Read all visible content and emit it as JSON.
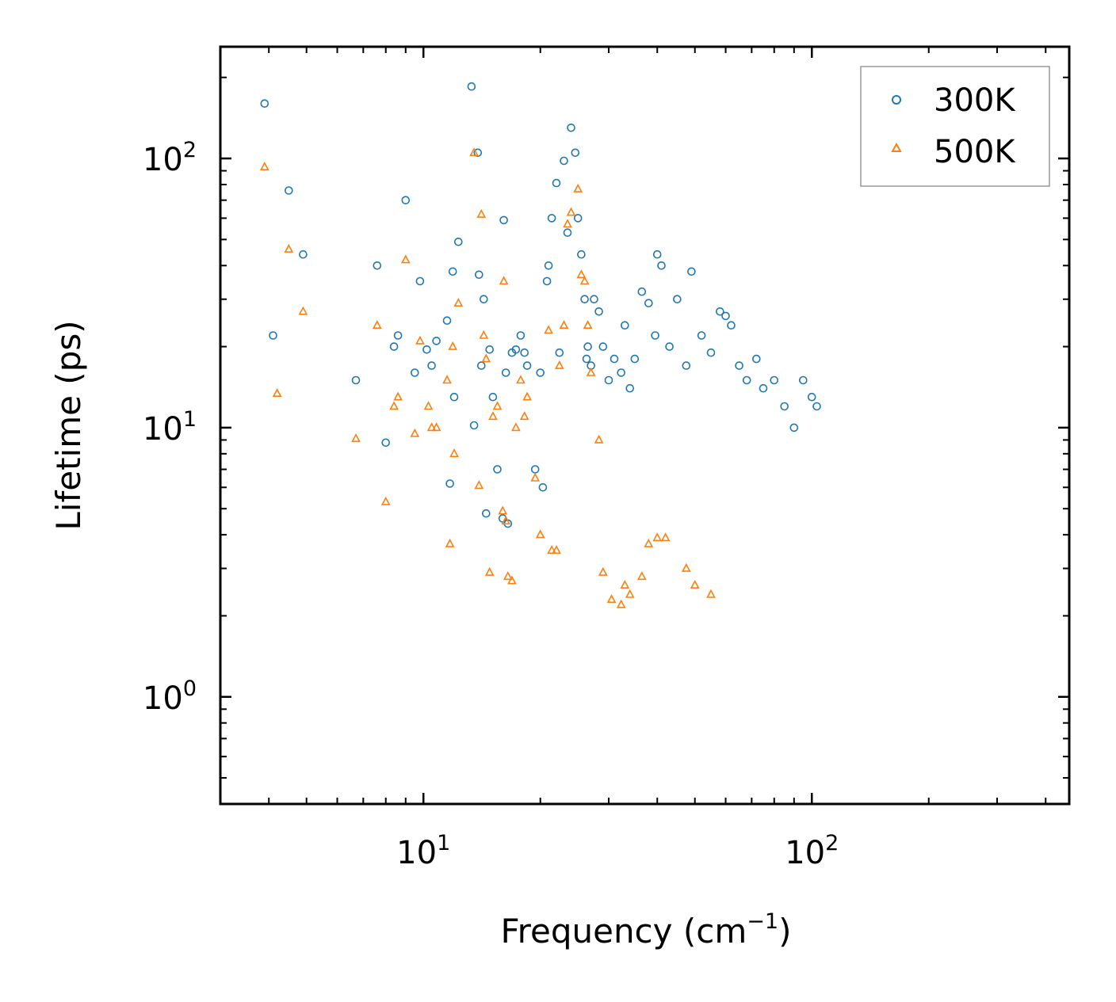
{
  "chart_data": {
    "type": "scatter",
    "title": "",
    "xlabel": "Frequency (cm",
    "xlabel_sup": "−1",
    "xlabel_end": ")",
    "ylabel": "Lifetime (ps)",
    "xscale": "log",
    "yscale": "log",
    "xlim": [
      3,
      460
    ],
    "ylim": [
      0.4,
      260
    ],
    "x_tick_labels": [
      {
        "value": 10,
        "base": "10",
        "exp": "1"
      },
      {
        "value": 100,
        "base": "10",
        "exp": "2"
      }
    ],
    "y_tick_labels": [
      {
        "value": 1,
        "base": "10",
        "exp": "0"
      },
      {
        "value": 10,
        "base": "10",
        "exp": "1"
      },
      {
        "value": 100,
        "base": "10",
        "exp": "2"
      }
    ],
    "legend_position": "top-right",
    "series": [
      {
        "name": "300K",
        "marker": "circle",
        "color": "#1f77b4",
        "x": [
          3.9,
          4.1,
          4.5,
          4.9,
          6.7,
          7.6,
          8.0,
          8.4,
          8.6,
          9.0,
          9.5,
          9.8,
          10.2,
          10.5,
          10.8,
          11.5,
          11.7,
          11.9,
          12.0,
          12.3,
          13.3,
          13.5,
          13.8,
          13.9,
          14.1,
          14.3,
          14.5,
          14.8,
          15.1,
          15.5,
          16.0,
          16.1,
          16.3,
          16.5,
          16.9,
          17.3,
          17.8,
          18.2,
          18.5,
          19.4,
          20.0,
          20.3,
          20.8,
          21.0,
          21.4,
          22.0,
          22.4,
          23.0,
          23.5,
          24.0,
          24.6,
          25.0,
          25.5,
          26.0,
          26.3,
          26.5,
          27.0,
          27.5,
          28.3,
          29.0,
          30.0,
          31.0,
          32.3,
          33.0,
          34.0,
          35.0,
          36.5,
          38.0,
          39.5,
          40.0,
          41.0,
          43.0,
          45.0,
          47.5,
          49.0,
          52.0,
          55.0,
          58.0,
          60.0,
          62.0,
          65.0,
          68.0,
          72.0,
          75.0,
          80.0,
          85.0,
          90.0,
          95.0,
          100.0,
          103.0
        ],
        "y": [
          160,
          22,
          76,
          44,
          15,
          40,
          8.8,
          20,
          22,
          70,
          16,
          35,
          19.5,
          17,
          21,
          25,
          6.2,
          38,
          13,
          49,
          185,
          10.2,
          105,
          37,
          17,
          30,
          4.8,
          19.5,
          13,
          7,
          4.6,
          59,
          16,
          4.4,
          19,
          19.5,
          22,
          19,
          17,
          7.0,
          16,
          6.0,
          35,
          40,
          60,
          81,
          19,
          98,
          53,
          130,
          105,
          60,
          44,
          30,
          18,
          20,
          17,
          30,
          27,
          20,
          15,
          18,
          16,
          24,
          14,
          18,
          32,
          29,
          22,
          44,
          40,
          20,
          30,
          17,
          38,
          22,
          19,
          27,
          26,
          24,
          17,
          15,
          18,
          14,
          15,
          12,
          10,
          15,
          13,
          12
        ]
      },
      {
        "name": "500K",
        "marker": "triangle",
        "color": "#ff7f0e",
        "x": [
          3.9,
          4.2,
          4.5,
          4.9,
          6.7,
          7.6,
          8.0,
          8.4,
          8.6,
          9.0,
          9.5,
          9.8,
          10.3,
          10.5,
          10.8,
          11.5,
          11.7,
          11.9,
          12.0,
          12.3,
          13.5,
          13.9,
          14.1,
          14.3,
          14.5,
          14.8,
          15.1,
          15.5,
          16.0,
          16.1,
          16.3,
          16.5,
          16.9,
          17.3,
          17.8,
          18.2,
          18.5,
          19.4,
          20.0,
          21.0,
          21.4,
          22.0,
          22.4,
          23.0,
          23.5,
          24.0,
          25.0,
          25.5,
          26.0,
          26.5,
          27.0,
          28.3,
          29.0,
          30.5,
          32.3,
          33.0,
          34.0,
          36.5,
          38.0,
          40.0,
          42.0,
          47.5,
          50.0,
          55.0
        ],
        "y": [
          93,
          13.4,
          46,
          27,
          9.1,
          24,
          5.3,
          12,
          13,
          42,
          9.5,
          21,
          12,
          10,
          10,
          15,
          3.7,
          20,
          8,
          29,
          105,
          6.1,
          62,
          22,
          18,
          2.9,
          11,
          12,
          4.9,
          35,
          4.5,
          2.8,
          2.7,
          10,
          15,
          11,
          13,
          6.5,
          4.0,
          23,
          3.5,
          3.5,
          17,
          24,
          57,
          63,
          77,
          37,
          35,
          24,
          16,
          9,
          2.9,
          2.3,
          2.2,
          2.6,
          2.4,
          2.8,
          3.7,
          3.9,
          3.9,
          3.0,
          2.6,
          2.4
        ]
      }
    ],
    "legend": {
      "entries": [
        {
          "label": "300K",
          "marker": "circle",
          "color": "#1f77b4"
        },
        {
          "label": "500K",
          "marker": "triangle",
          "color": "#ff7f0e"
        }
      ]
    }
  }
}
